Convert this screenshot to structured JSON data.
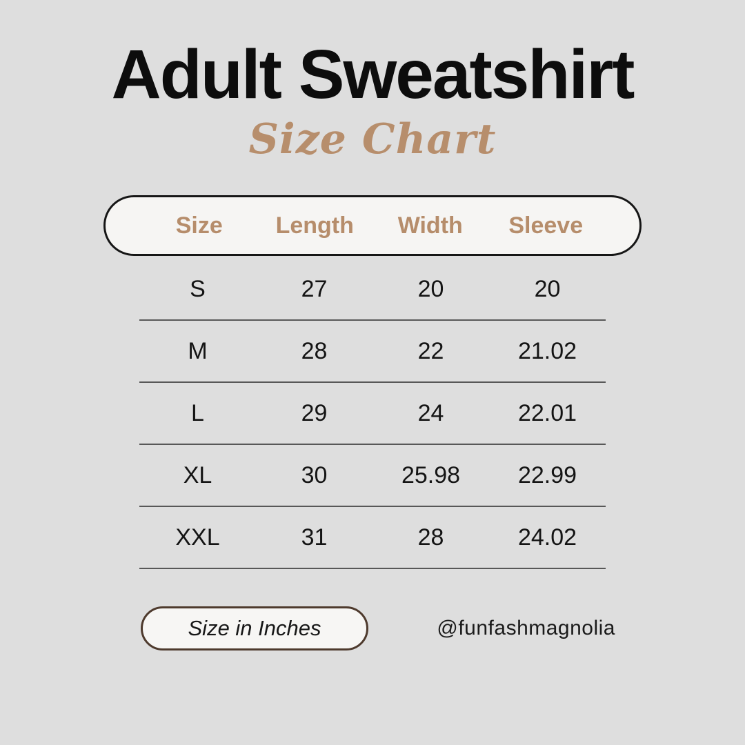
{
  "page": {
    "background_color": "#dedede",
    "accent_color": "#b78e6c",
    "title_color": "#0d0d0d"
  },
  "title": "Adult Sweatshirt",
  "subtitle": "Size Chart",
  "chart_data": {
    "type": "table",
    "title": "Adult Sweatshirt Size Chart",
    "unit": "inches",
    "columns": [
      "Size",
      "Length",
      "Width",
      "Sleeve"
    ],
    "rows": [
      [
        "S",
        "27",
        "20",
        "20"
      ],
      [
        "M",
        "28",
        "22",
        "21.02"
      ],
      [
        "L",
        "29",
        "24",
        "22.01"
      ],
      [
        "XL",
        "30",
        "25.98",
        "22.99"
      ],
      [
        "XXL",
        "31",
        "28",
        "24.02"
      ]
    ]
  },
  "footer": {
    "unit_label": "Size in Inches",
    "handle": "@funfashmagnolia"
  }
}
